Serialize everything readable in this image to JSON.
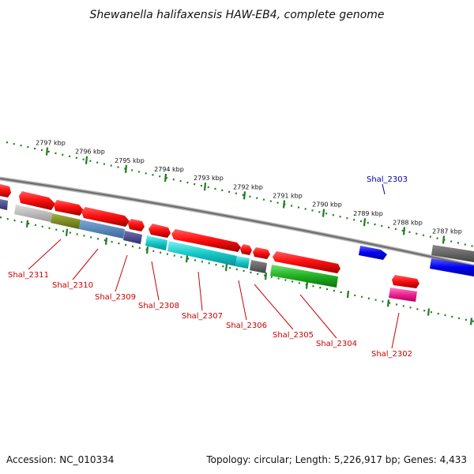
{
  "title": "Shewanella halifaxensis HAW-EB4, complete genome",
  "footer": {
    "accession": "Accession: NC_010334",
    "topology": "Topology: circular; Length: 5,226,917 bp; Genes: 4,433"
  },
  "colors": {
    "backbone": "#7a7a7a",
    "tick": "#1e7d1e",
    "label_red": "#cc0000",
    "label_blue": "#0000aa"
  },
  "ticks": [
    {
      "label": "2797 kbp"
    },
    {
      "label": "2796 kbp"
    },
    {
      "label": "2795 kbp"
    },
    {
      "label": "2794 kbp"
    },
    {
      "label": "2793 kbp"
    },
    {
      "label": "2792 kbp"
    },
    {
      "label": "2791 kbp"
    },
    {
      "label": "2790 kbp"
    },
    {
      "label": "2789 kbp"
    },
    {
      "label": "2788 kbp"
    },
    {
      "label": "2787 kbp"
    }
  ],
  "genes": [
    {
      "label": "Shal_2311",
      "color": "#cc0000"
    },
    {
      "label": "Shal_2310",
      "color": "#cc0000"
    },
    {
      "label": "Shal_2309",
      "color": "#cc0000"
    },
    {
      "label": "Shal_2308",
      "color": "#cc0000"
    },
    {
      "label": "Shal_2307",
      "color": "#cc0000"
    },
    {
      "label": "Shal_2306",
      "color": "#cc0000"
    },
    {
      "label": "Shal_2305",
      "color": "#cc0000"
    },
    {
      "label": "Shal_2304",
      "color": "#cc0000"
    },
    {
      "label": "Shal_2303",
      "color": "#0000aa"
    },
    {
      "label": "Shal_2302",
      "color": "#cc0000"
    }
  ]
}
